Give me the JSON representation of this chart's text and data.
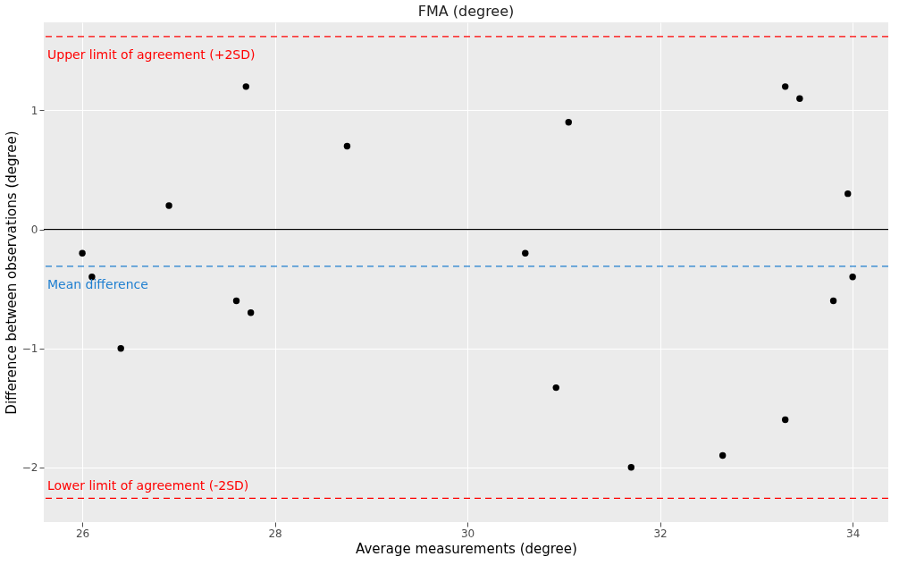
{
  "chart_data": {
    "type": "scatter",
    "title": "FMA (degree)",
    "xlabel": "Average measurements (degree)",
    "ylabel": "Difference between observations (degree)",
    "x": [
      26.0,
      26.1,
      26.4,
      26.9,
      27.6,
      27.7,
      27.75,
      28.75,
      30.6,
      30.92,
      31.05,
      31.7,
      32.65,
      33.3,
      33.45,
      33.3,
      33.8,
      33.95,
      34.0
    ],
    "series": [
      {
        "color": "#000000",
        "values": [
          -0.2,
          -0.4,
          -1.0,
          0.2,
          -0.6,
          1.2,
          -0.7,
          0.7,
          -0.2,
          -1.33,
          0.9,
          -2.0,
          -1.9,
          1.2,
          1.1,
          -1.6,
          -0.6,
          0.3,
          -0.4
        ]
      }
    ],
    "xlim": [
      25.6,
      34.37
    ],
    "ylim": [
      -2.46,
      1.74
    ],
    "xticks": [
      26,
      28,
      30,
      32,
      34
    ],
    "yticks": [
      -2,
      -1,
      0,
      1
    ],
    "ref_lines": [
      {
        "axis": "y",
        "value": 1.62,
        "label": "Upper limit of agreement (+2SD)",
        "color": "#ff0000",
        "line_style": "dashed"
      },
      {
        "axis": "y",
        "value": -0.31,
        "label": "Mean difference",
        "color": "#1f7fd0",
        "line_style": "dashed"
      },
      {
        "axis": "y",
        "value": -2.26,
        "label": "Lower limit of agreement (-2SD)",
        "color": "#ff0000",
        "line_style": "dashed"
      },
      {
        "axis": "y",
        "value": 0,
        "color": "#000000",
        "line_style": "solid"
      }
    ],
    "grid": true,
    "marker": "circle"
  }
}
